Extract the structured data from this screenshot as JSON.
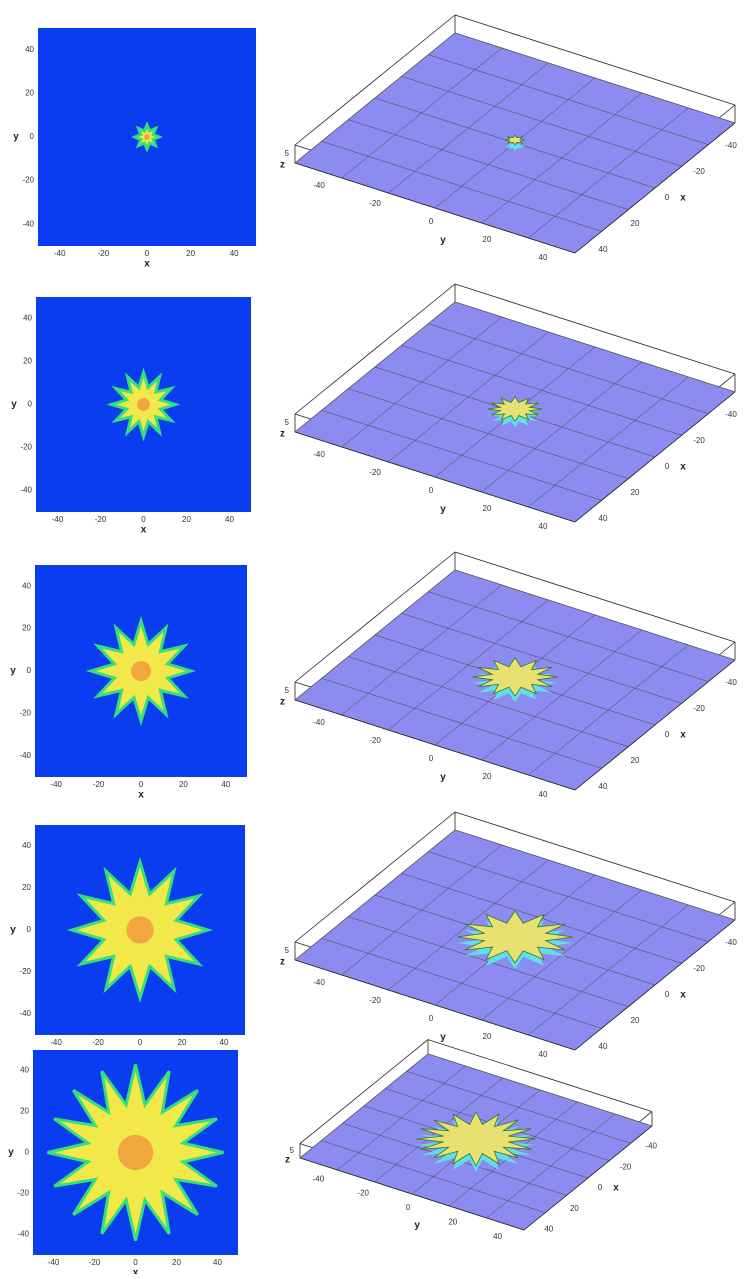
{
  "rows": [
    {
      "plot2d": {
        "xticks": [
          -40,
          -20,
          0,
          20,
          40
        ],
        "yticks": [
          40,
          20,
          0,
          -20,
          -40
        ],
        "xlabel": "x",
        "ylabel": "y"
      },
      "plot3d": {
        "yticks": [
          -40,
          -20,
          0,
          20,
          40
        ],
        "xticks": [
          -40,
          -20,
          0,
          20,
          40
        ],
        "zticks": [
          5
        ],
        "xlabel": "x",
        "ylabel": "y",
        "zlabel": "z"
      }
    },
    {
      "plot2d": {
        "xticks": [
          -40,
          -20,
          0,
          20,
          40
        ],
        "yticks": [
          40,
          20,
          0,
          -20,
          -40
        ],
        "xlabel": "x",
        "ylabel": "y"
      },
      "plot3d": {
        "yticks": [
          -40,
          -20,
          0,
          20,
          40
        ],
        "xticks": [
          -40,
          -20,
          0,
          20,
          40
        ],
        "zticks": [
          5
        ],
        "xlabel": "x",
        "ylabel": "y",
        "zlabel": "z"
      }
    },
    {
      "plot2d": {
        "xticks": [
          -40,
          -20,
          0,
          20,
          40
        ],
        "yticks": [
          40,
          20,
          0,
          -20,
          -40
        ],
        "xlabel": "x",
        "ylabel": "y"
      },
      "plot3d": {
        "yticks": [
          -40,
          -20,
          0,
          20,
          40
        ],
        "xticks": [
          -40,
          -20,
          0,
          20,
          40
        ],
        "zticks": [
          5
        ],
        "xlabel": "x",
        "ylabel": "y",
        "zlabel": "z"
      }
    },
    {
      "plot2d": {
        "xticks": [
          -40,
          -20,
          0,
          20,
          40
        ],
        "yticks": [
          40,
          20,
          0,
          -20,
          -40
        ],
        "xlabel": "x",
        "ylabel": "y"
      },
      "plot3d": {
        "yticks": [
          -40,
          -20,
          0,
          20,
          40
        ],
        "xticks": [
          -40,
          -20,
          0,
          20,
          40
        ],
        "zticks": [
          5
        ],
        "xlabel": "x",
        "ylabel": "y",
        "zlabel": "z"
      }
    },
    {
      "plot2d": {
        "xticks": [
          -40,
          -20,
          0,
          20,
          40
        ],
        "yticks": [
          40,
          20,
          0,
          -20,
          -40
        ],
        "xlabel": "x",
        "ylabel": "y"
      },
      "plot3d": {
        "yticks": [
          -40,
          -20,
          0,
          20,
          40
        ],
        "xticks": [
          -40,
          -20,
          0,
          20,
          40
        ],
        "zticks": [
          5
        ],
        "xlabel": "x",
        "ylabel": "y",
        "zlabel": "z"
      }
    }
  ]
}
